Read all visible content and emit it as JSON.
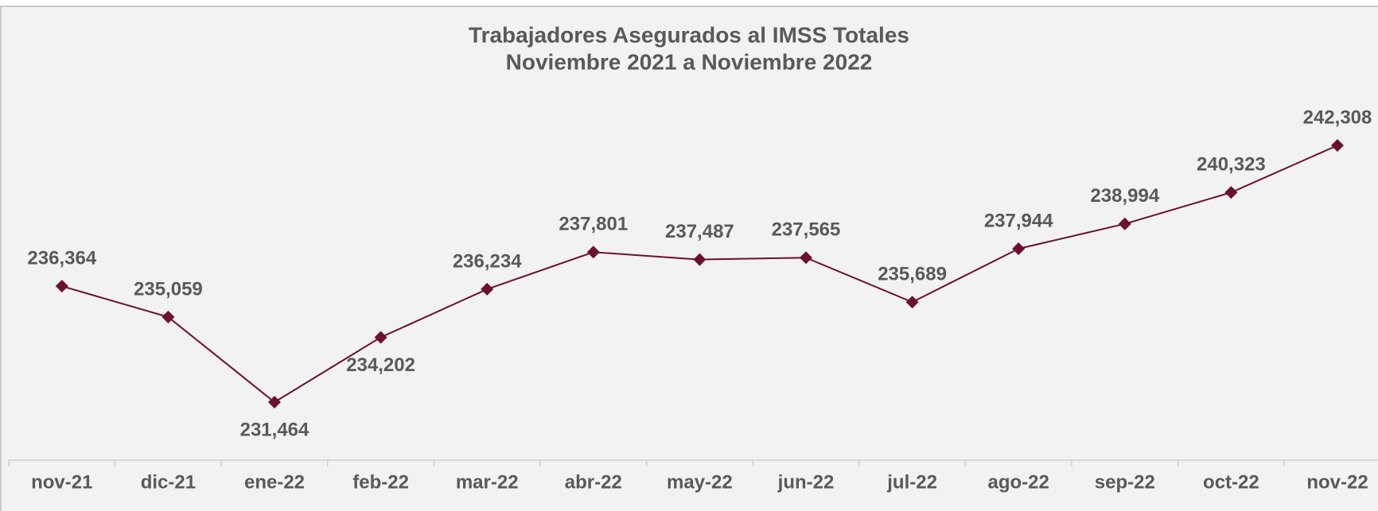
{
  "chart_data": {
    "type": "line",
    "title": [
      "Trabajadores Asegurados al IMSS Totales",
      "Noviembre 2021 a Noviembre 2022"
    ],
    "categories": [
      "nov-21",
      "dic-21",
      "ene-22",
      "feb-22",
      "mar-22",
      "abr-22",
      "may-22",
      "jun-22",
      "jul-22",
      "ago-22",
      "sep-22",
      "oct-22",
      "nov-22"
    ],
    "series": [
      {
        "color": "#6b1030",
        "values": [
          236364,
          235059,
          231464,
          234202,
          236234,
          237801,
          237487,
          237565,
          235689,
          237944,
          238994,
          240323,
          242308
        ],
        "value_labels": [
          "236,364",
          "235,059",
          "231,464",
          "234,202",
          "236,234",
          "237,801",
          "237,487",
          "237,565",
          "235,689",
          "237,944",
          "238,994",
          "240,323",
          "242,308"
        ]
      }
    ],
    "grid": false
  }
}
